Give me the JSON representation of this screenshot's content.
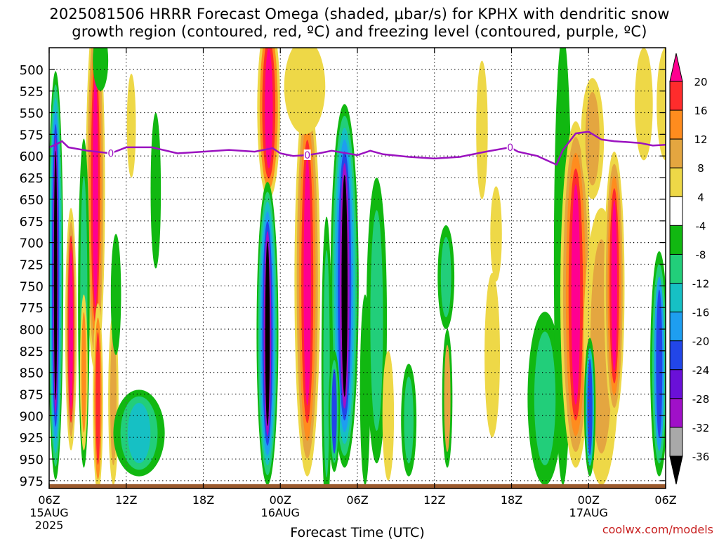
{
  "title_line1": "2025081506 HRRR Forecast Omega (shaded, μbar/s) for KPHX with dendritic snow",
  "title_line2": "growth region (contoured, red, ºC) and freezing level (contoured, purple, ºC)",
  "credit": "coolwx.com/models",
  "chart_data": {
    "type": "heatmap",
    "xlabel": "Forecast Time (UTC)",
    "ylabel": "",
    "x_ticks": [
      {
        "hour": 0,
        "label": "06Z",
        "sub": "15AUG",
        "sub2": "2025"
      },
      {
        "hour": 6,
        "label": "12Z"
      },
      {
        "hour": 12,
        "label": "18Z"
      },
      {
        "hour": 18,
        "label": "00Z",
        "sub": "16AUG"
      },
      {
        "hour": 24,
        "label": "06Z"
      },
      {
        "hour": 30,
        "label": "12Z"
      },
      {
        "hour": 36,
        "label": "18Z"
      },
      {
        "hour": 42,
        "label": "00Z",
        "sub": "17AUG"
      },
      {
        "hour": 48,
        "label": "06Z"
      }
    ],
    "y_ticks": [
      500,
      525,
      550,
      575,
      600,
      625,
      650,
      675,
      700,
      725,
      750,
      775,
      800,
      825,
      850,
      875,
      900,
      925,
      950,
      975
    ],
    "xlim": [
      0,
      48
    ],
    "ylim": [
      475,
      984
    ],
    "grid": true,
    "colorbar": {
      "labels": [
        "20",
        "16",
        "12",
        "8",
        "4",
        "-4",
        "-8",
        "-12",
        "-16",
        "-20",
        "-24",
        "-28",
        "-32",
        "-36"
      ],
      "colors": [
        "#ff0090",
        "#ff2c2c",
        "#ff8c1e",
        "#e4a640",
        "#eed847",
        "#ffffff",
        "#11b811",
        "#22ce7a",
        "#16c0c4",
        "#1e9ef0",
        "#2246e8",
        "#6a10d8",
        "#a010c8",
        "#a9a9a9",
        "#000000"
      ]
    },
    "freezing_level": {
      "color": "#9b12c0",
      "label": "0",
      "label_points": [
        [
          4.8,
          597
        ],
        [
          20.1,
          599
        ],
        [
          35.9,
          590
        ]
      ],
      "points": [
        [
          0,
          590
        ],
        [
          0.5,
          587
        ],
        [
          1,
          583
        ],
        [
          1.5,
          590
        ],
        [
          3,
          594
        ],
        [
          4.8,
          597
        ],
        [
          6,
          590
        ],
        [
          8,
          590
        ],
        [
          10,
          597
        ],
        [
          12,
          595
        ],
        [
          14,
          593
        ],
        [
          16,
          595
        ],
        [
          17.4,
          591
        ],
        [
          18,
          597
        ],
        [
          19,
          600
        ],
        [
          20.1,
          599
        ],
        [
          21,
          597
        ],
        [
          22,
          594
        ],
        [
          24,
          599
        ],
        [
          25,
          594
        ],
        [
          26,
          598
        ],
        [
          28,
          601
        ],
        [
          30,
          603
        ],
        [
          32,
          601
        ],
        [
          34,
          595
        ],
        [
          35.9,
          590
        ],
        [
          36.5,
          595
        ],
        [
          38,
          600
        ],
        [
          39.5,
          610
        ],
        [
          40,
          593
        ],
        [
          41,
          574
        ],
        [
          42,
          572
        ],
        [
          43,
          581
        ],
        [
          44,
          583
        ],
        [
          46,
          585
        ],
        [
          47,
          588
        ],
        [
          48,
          587
        ]
      ]
    },
    "omega_regions": [
      {
        "x": 0.5,
        "p": 738,
        "w": 1.2,
        "h": 472,
        "levels": [
          "#11b811",
          "#22ce7a",
          "#16c0c4",
          "#1e9ef0",
          "#2246e8",
          "#a010c8",
          "#000000"
        ]
      },
      {
        "x": 3.6,
        "p": 640,
        "w": 1.5,
        "h": 420,
        "levels": [
          "#eed847",
          "#e4a640",
          "#ff8c1e",
          "#ff2c2c",
          "#ff0090"
        ]
      },
      {
        "x": 3.8,
        "p": 880,
        "w": 0.8,
        "h": 220,
        "levels": [
          "#eed847",
          "#ff8c1e",
          "#ff2c2c"
        ]
      },
      {
        "x": 5.0,
        "p": 880,
        "w": 0.8,
        "h": 200,
        "levels": [
          "#eed847",
          "#e4a640"
        ]
      },
      {
        "x": 2.7,
        "p": 770,
        "w": 0.9,
        "h": 380,
        "levels": [
          "#11b811",
          "#22ce7a"
        ]
      },
      {
        "x": 2.7,
        "p": 850,
        "w": 0.6,
        "h": 180,
        "levels": [
          "#eed847",
          "#ff8c1e"
        ]
      },
      {
        "x": 1.7,
        "p": 800,
        "w": 0.9,
        "h": 280,
        "levels": [
          "#eed847",
          "#e4a640",
          "#ff2c2c",
          "#ff0090"
        ]
      },
      {
        "x": 4.0,
        "p": 490,
        "w": 1.2,
        "h": 70,
        "levels": [
          "#11b811"
        ]
      },
      {
        "x": 5.2,
        "p": 760,
        "w": 0.8,
        "h": 140,
        "levels": [
          "#11b811"
        ]
      },
      {
        "x": 7.0,
        "p": 920,
        "w": 4.0,
        "h": 100,
        "levels": [
          "#11b811",
          "#22ce7a",
          "#16c0c4"
        ]
      },
      {
        "x": 8.3,
        "p": 640,
        "w": 0.8,
        "h": 180,
        "levels": [
          "#11b811"
        ]
      },
      {
        "x": 6.4,
        "p": 565,
        "w": 0.7,
        "h": 120,
        "levels": [
          "#eed847"
        ]
      },
      {
        "x": 17.1,
        "p": 545,
        "w": 1.8,
        "h": 210,
        "levels": [
          "#eed847",
          "#ff8c1e",
          "#ff2c2c",
          "#ff0090"
        ]
      },
      {
        "x": 17.0,
        "p": 805,
        "w": 1.7,
        "h": 350,
        "levels": [
          "#11b811",
          "#22ce7a",
          "#16c0c4",
          "#1e9ef0",
          "#2246e8",
          "#a010c8",
          "#000000"
        ]
      },
      {
        "x": 20.1,
        "p": 745,
        "w": 2.0,
        "h": 450,
        "levels": [
          "#eed847",
          "#e4a640",
          "#ff8c1e",
          "#ff2c2c",
          "#ff0090"
        ]
      },
      {
        "x": 19.9,
        "p": 520,
        "w": 3.2,
        "h": 110,
        "levels": [
          "#eed847"
        ]
      },
      {
        "x": 21.6,
        "p": 840,
        "w": 0.8,
        "h": 340,
        "levels": [
          "#11b811",
          "#22ce7a"
        ]
      },
      {
        "x": 23.0,
        "p": 750,
        "w": 2.2,
        "h": 420,
        "levels": [
          "#11b811",
          "#22ce7a",
          "#16c0c4",
          "#1e9ef0",
          "#2246e8",
          "#a010c8",
          "#000000"
        ]
      },
      {
        "x": 25.5,
        "p": 790,
        "w": 1.6,
        "h": 330,
        "levels": [
          "#11b811",
          "#22ce7a"
        ]
      },
      {
        "x": 22.2,
        "p": 895,
        "w": 0.9,
        "h": 140,
        "levels": [
          "#11b811",
          "#22ce7a",
          "#2246e8"
        ]
      },
      {
        "x": 24.6,
        "p": 870,
        "w": 0.8,
        "h": 220,
        "levels": [
          "#11b811"
        ]
      },
      {
        "x": 26.4,
        "p": 900,
        "w": 0.9,
        "h": 150,
        "levels": [
          "#eed847"
        ]
      },
      {
        "x": 28.0,
        "p": 905,
        "w": 1.2,
        "h": 130,
        "levels": [
          "#11b811",
          "#22ce7a"
        ]
      },
      {
        "x": 30.9,
        "p": 740,
        "w": 1.3,
        "h": 120,
        "levels": [
          "#11b811",
          "#22ce7a"
        ]
      },
      {
        "x": 31.0,
        "p": 880,
        "w": 0.8,
        "h": 160,
        "levels": [
          "#11b811",
          "#e4a640"
        ]
      },
      {
        "x": 33.7,
        "p": 570,
        "w": 0.9,
        "h": 160,
        "levels": [
          "#eed847"
        ]
      },
      {
        "x": 34.5,
        "p": 830,
        "w": 1.2,
        "h": 190,
        "levels": [
          "#eed847"
        ]
      },
      {
        "x": 34.8,
        "p": 690,
        "w": 0.9,
        "h": 110,
        "levels": [
          "#eed847"
        ]
      },
      {
        "x": 38.6,
        "p": 880,
        "w": 2.7,
        "h": 200,
        "levels": [
          "#11b811",
          "#22ce7a"
        ]
      },
      {
        "x": 40.0,
        "p": 720,
        "w": 1.4,
        "h": 520,
        "levels": [
          "#11b811"
        ]
      },
      {
        "x": 41.0,
        "p": 760,
        "w": 2.4,
        "h": 400,
        "levels": [
          "#eed847",
          "#e4a640",
          "#ff8c1e",
          "#ff2c2c",
          "#ff0090"
        ]
      },
      {
        "x": 43.0,
        "p": 820,
        "w": 2.8,
        "h": 320,
        "levels": [
          "#eed847",
          "#e4a640"
        ]
      },
      {
        "x": 42.3,
        "p": 580,
        "w": 1.8,
        "h": 140,
        "levels": [
          "#eed847",
          "#e4a640"
        ]
      },
      {
        "x": 44.0,
        "p": 750,
        "w": 1.6,
        "h": 310,
        "levels": [
          "#eed847",
          "#e4a640",
          "#ff8c1e",
          "#ff2c2c",
          "#ff0090"
        ]
      },
      {
        "x": 42.1,
        "p": 890,
        "w": 0.9,
        "h": 160,
        "levels": [
          "#11b811",
          "#16c0c4",
          "#2246e8"
        ]
      },
      {
        "x": 47.5,
        "p": 840,
        "w": 1.4,
        "h": 260,
        "levels": [
          "#11b811",
          "#22ce7a",
          "#1e9ef0",
          "#2246e8"
        ]
      },
      {
        "x": 46.3,
        "p": 540,
        "w": 1.4,
        "h": 130,
        "levels": [
          "#eed847"
        ]
      },
      {
        "x": 48.0,
        "p": 540,
        "w": 1.4,
        "h": 130,
        "levels": [
          "#eed847"
        ]
      }
    ],
    "terrain": {
      "color": "#9b5a2d",
      "surface_p": 979
    }
  }
}
